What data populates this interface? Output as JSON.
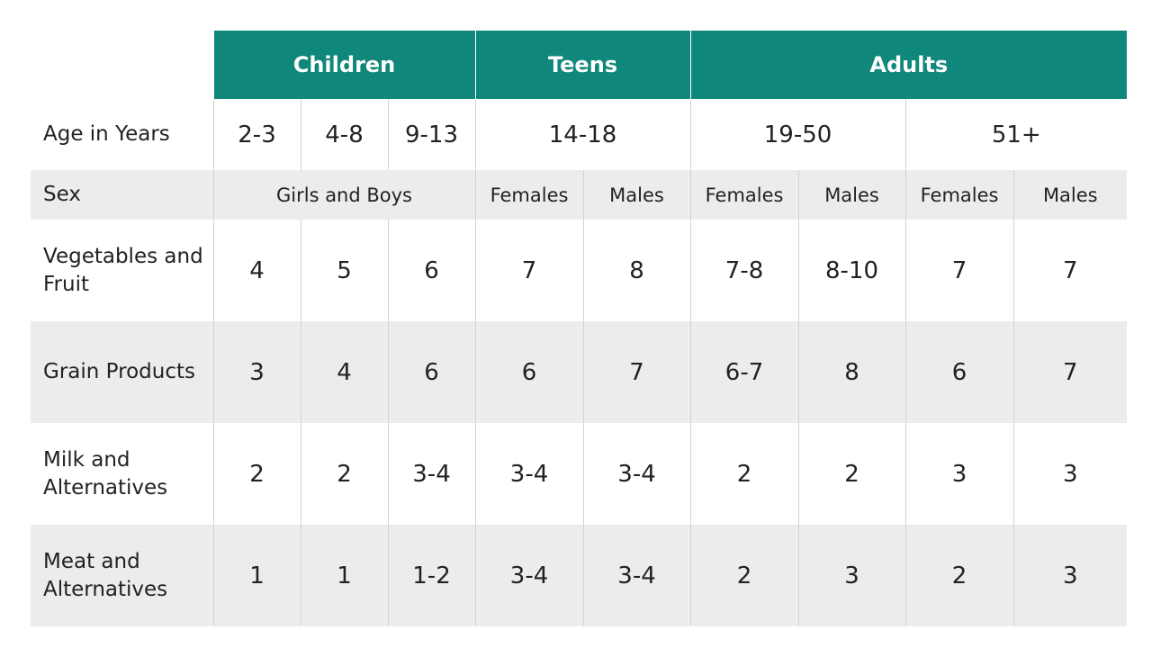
{
  "groups": [
    "Children",
    "Teens",
    "Adults"
  ],
  "age_row": {
    "label": "Age in Years",
    "values": [
      "2-3",
      "4-8",
      "9-13",
      "14-18",
      "19-50",
      "51+"
    ]
  },
  "sex_row": {
    "label": "Sex",
    "values": [
      "Girls and Boys",
      "Females",
      "Males",
      "Females",
      "Males",
      "Females",
      "Males"
    ]
  },
  "rows": [
    {
      "label": "Vegetables and Fruit",
      "values": [
        "4",
        "5",
        "6",
        "7",
        "8",
        "7-8",
        "8-10",
        "7",
        "7"
      ]
    },
    {
      "label": "Grain Products",
      "values": [
        "3",
        "4",
        "6",
        "6",
        "7",
        "6-7",
        "8",
        "6",
        "7"
      ]
    },
    {
      "label": "Milk and Alternatives",
      "values": [
        "2",
        "2",
        "3-4",
        "3-4",
        "3-4",
        "2",
        "2",
        "3",
        "3"
      ]
    },
    {
      "label": "Meat and Alternatives",
      "values": [
        "1",
        "1",
        "1-2",
        "3-4",
        "3-4",
        "2",
        "3",
        "2",
        "3"
      ]
    }
  ],
  "colors": {
    "header_bg": "#0f877a",
    "header_text": "#ffffff",
    "stripe_bg": "#ececec"
  }
}
